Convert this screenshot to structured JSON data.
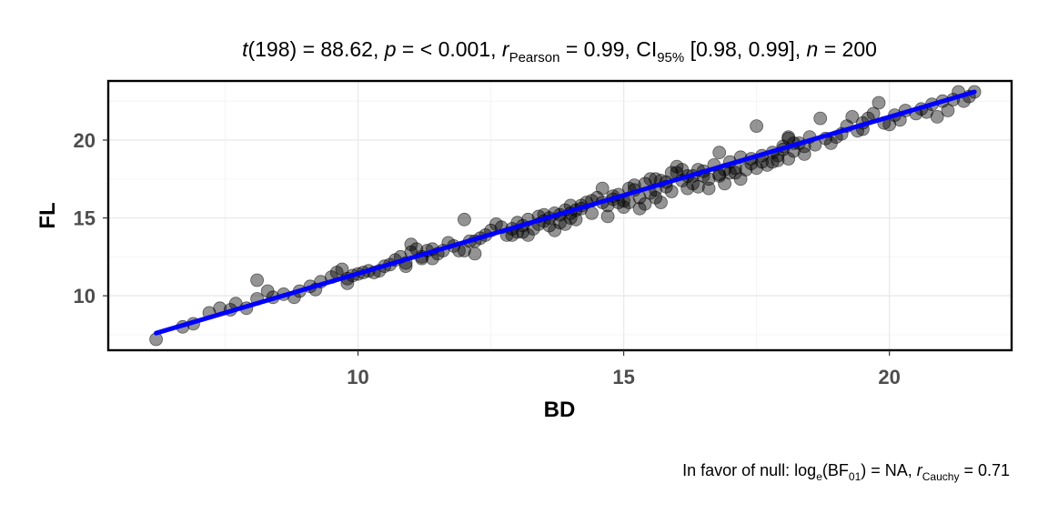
{
  "chart_data": {
    "type": "scatter",
    "title": {
      "t_sym": "t",
      "t_stat": "(198) = 88.62, ",
      "p_sym": "p",
      "p_text": " = < 0.001, ",
      "r_sym": "r",
      "r_sub": "Pearson",
      "r_text": " = 0.99, CI",
      "ci_sub": "95%",
      "ci_text": " [0.98, 0.99], ",
      "n_sym": "n",
      "n_text": " = 200"
    },
    "caption": {
      "prefix": "In favor of null: log",
      "log_sub": "e",
      "bf_open": "(BF",
      "bf_sub": "01",
      "bf_close": ") = NA, ",
      "r_sym": "r",
      "r_sub": "Cauchy",
      "r_text": " = 0.71"
    },
    "xlabel": "BD",
    "ylabel": "FL",
    "xlim": [
      5.3,
      22.3
    ],
    "ylim": [
      6.5,
      23.8
    ],
    "x_ticks": [
      10,
      15,
      20
    ],
    "y_ticks": [
      10,
      15,
      20
    ],
    "grid": true,
    "colors": {
      "points": "#000000",
      "fit_line": "#0000ff",
      "grid": "#ebebeb",
      "panel_border": "#000000"
    },
    "fit": {
      "x": [
        6.2,
        21.6
      ],
      "y": [
        7.6,
        23.1
      ]
    },
    "points": [
      [
        6.2,
        7.2
      ],
      [
        6.9,
        8.2
      ],
      [
        7.2,
        8.9
      ],
      [
        7.6,
        9.1
      ],
      [
        7.7,
        9.5
      ],
      [
        8.1,
        9.8
      ],
      [
        8.1,
        11.0
      ],
      [
        8.3,
        10.3
      ],
      [
        8.8,
        9.9
      ],
      [
        8.9,
        10.3
      ],
      [
        9.1,
        10.6
      ],
      [
        9.3,
        10.9
      ],
      [
        9.5,
        11.2
      ],
      [
        9.7,
        11.7
      ],
      [
        9.8,
        10.8
      ],
      [
        9.8,
        11.1
      ],
      [
        10.0,
        11.4
      ],
      [
        10.2,
        11.6
      ],
      [
        10.4,
        11.6
      ],
      [
        10.5,
        11.9
      ],
      [
        10.6,
        12.0
      ],
      [
        10.8,
        12.5
      ],
      [
        10.9,
        12.1
      ],
      [
        11.0,
        12.8
      ],
      [
        11.1,
        13.0
      ],
      [
        11.2,
        12.4
      ],
      [
        11.3,
        12.9
      ],
      [
        11.4,
        13.0
      ],
      [
        11.5,
        12.7
      ],
      [
        11.6,
        12.9
      ],
      [
        11.8,
        13.2
      ],
      [
        12.0,
        14.9
      ],
      [
        12.0,
        12.9
      ],
      [
        12.1,
        13.5
      ],
      [
        12.2,
        12.7
      ],
      [
        12.3,
        13.7
      ],
      [
        12.5,
        14.2
      ],
      [
        12.6,
        14.6
      ],
      [
        12.8,
        13.9
      ],
      [
        12.9,
        14.3
      ],
      [
        13.0,
        14.7
      ],
      [
        13.1,
        14.1
      ],
      [
        13.2,
        13.9
      ],
      [
        13.3,
        14.3
      ],
      [
        13.4,
        14.6
      ],
      [
        13.5,
        14.8
      ],
      [
        13.6,
        15.0
      ],
      [
        13.7,
        14.2
      ],
      [
        13.8,
        15.2
      ],
      [
        13.9,
        15.5
      ],
      [
        13.9,
        14.6
      ],
      [
        14.0,
        15.8
      ],
      [
        14.0,
        15.0
      ],
      [
        14.1,
        14.9
      ],
      [
        14.2,
        15.6
      ],
      [
        14.3,
        16.0
      ],
      [
        14.4,
        15.3
      ],
      [
        14.5,
        16.3
      ],
      [
        14.6,
        16.9
      ],
      [
        14.7,
        15.8
      ],
      [
        14.7,
        15.1
      ],
      [
        14.8,
        16.2
      ],
      [
        14.9,
        16.5
      ],
      [
        15.0,
        15.7
      ],
      [
        15.1,
        16.0
      ],
      [
        15.1,
        16.9
      ],
      [
        15.2,
        17.1
      ],
      [
        15.3,
        16.3
      ],
      [
        15.3,
        15.6
      ],
      [
        15.4,
        15.9
      ],
      [
        15.4,
        17.2
      ],
      [
        15.5,
        16.6
      ],
      [
        15.6,
        16.8
      ],
      [
        15.6,
        17.5
      ],
      [
        15.7,
        16.0
      ],
      [
        15.8,
        17.0
      ],
      [
        15.9,
        17.9
      ],
      [
        15.9,
        16.7
      ],
      [
        16.0,
        18.3
      ],
      [
        16.1,
        17.4
      ],
      [
        16.1,
        18.1
      ],
      [
        16.2,
        16.9
      ],
      [
        16.3,
        17.7
      ],
      [
        16.4,
        17.0
      ],
      [
        16.5,
        18.0
      ],
      [
        16.6,
        16.9
      ],
      [
        16.6,
        17.5
      ],
      [
        16.7,
        18.4
      ],
      [
        16.8,
        19.2
      ],
      [
        16.8,
        17.8
      ],
      [
        16.9,
        17.2
      ],
      [
        17.0,
        18.6
      ],
      [
        17.1,
        17.9
      ],
      [
        17.2,
        17.5
      ],
      [
        17.3,
        18.1
      ],
      [
        17.4,
        18.5
      ],
      [
        17.5,
        20.9
      ],
      [
        17.5,
        18.2
      ],
      [
        17.6,
        19.0
      ],
      [
        17.7,
        18.4
      ],
      [
        17.8,
        19.2
      ],
      [
        17.9,
        18.7
      ],
      [
        18.0,
        19.6
      ],
      [
        18.1,
        18.8
      ],
      [
        18.1,
        20.2
      ],
      [
        18.2,
        19.3
      ],
      [
        18.3,
        19.8
      ],
      [
        18.4,
        19.1
      ],
      [
        18.6,
        19.7
      ],
      [
        18.7,
        21.4
      ],
      [
        18.8,
        20.1
      ],
      [
        18.9,
        19.8
      ],
      [
        19.1,
        20.4
      ],
      [
        19.2,
        20.9
      ],
      [
        19.3,
        21.5
      ],
      [
        19.4,
        20.6
      ],
      [
        19.5,
        21.1
      ],
      [
        19.6,
        21.4
      ],
      [
        19.7,
        21.7
      ],
      [
        19.8,
        22.4
      ],
      [
        20.0,
        21.0
      ],
      [
        20.1,
        21.6
      ],
      [
        20.3,
        21.9
      ],
      [
        20.5,
        21.7
      ],
      [
        20.6,
        22.0
      ],
      [
        20.8,
        22.3
      ],
      [
        20.9,
        21.5
      ],
      [
        21.0,
        22.5
      ],
      [
        21.1,
        21.9
      ],
      [
        21.2,
        22.6
      ],
      [
        21.3,
        23.1
      ],
      [
        21.5,
        22.8
      ],
      [
        21.6,
        23.1
      ],
      [
        6.7,
        8.0
      ],
      [
        7.4,
        9.2
      ],
      [
        8.4,
        9.9
      ],
      [
        9.2,
        10.4
      ],
      [
        10.3,
        11.5
      ],
      [
        10.7,
        12.3
      ],
      [
        11.0,
        13.3
      ],
      [
        11.7,
        13.4
      ],
      [
        12.4,
        13.9
      ],
      [
        13.0,
        14.1
      ],
      [
        13.4,
        15.1
      ],
      [
        13.6,
        14.5
      ],
      [
        14.2,
        15.8
      ],
      [
        14.6,
        16.0
      ],
      [
        14.9,
        16.0
      ],
      [
        15.2,
        16.8
      ],
      [
        15.5,
        17.5
      ],
      [
        15.8,
        17.3
      ],
      [
        16.2,
        17.7
      ],
      [
        16.4,
        18.1
      ],
      [
        16.9,
        18.1
      ],
      [
        17.2,
        18.9
      ],
      [
        17.6,
        18.6
      ],
      [
        18.0,
        19.4
      ],
      [
        18.4,
        19.6
      ],
      [
        19.0,
        20.2
      ],
      [
        20.2,
        21.3
      ],
      [
        11.4,
        12.4
      ],
      [
        13.2,
        14.9
      ],
      [
        14.4,
        16.1
      ],
      [
        15.6,
        16.3
      ],
      [
        17.0,
        17.9
      ],
      [
        18.2,
        19.8
      ],
      [
        19.5,
        20.7
      ],
      [
        20.7,
        21.8
      ],
      [
        7.9,
        9.2
      ],
      [
        9.6,
        11.5
      ],
      [
        10.9,
        11.9
      ],
      [
        12.7,
        14.4
      ],
      [
        13.8,
        14.7
      ],
      [
        14.1,
        15.5
      ],
      [
        16.0,
        17.9
      ],
      [
        17.4,
        18.8
      ],
      [
        18.5,
        20.2
      ],
      [
        19.9,
        21.1
      ],
      [
        10.1,
        11.5
      ],
      [
        12.2,
        13.5
      ],
      [
        13.5,
        15.2
      ],
      [
        14.8,
        16.4
      ],
      [
        16.5,
        17.7
      ],
      [
        17.8,
        18.6
      ],
      [
        18.1,
        20.1
      ],
      [
        21.4,
        22.5
      ],
      [
        8.6,
        10.1
      ],
      [
        11.2,
        12.5
      ],
      [
        13.1,
        14.5
      ],
      [
        15.0,
        16.1
      ],
      [
        16.3,
        17.2
      ],
      [
        17.9,
        19.0
      ],
      [
        12.9,
        13.9
      ],
      [
        14.0,
        15.3
      ],
      [
        15.7,
        17.4
      ],
      [
        17.1,
        18.2
      ],
      [
        9.9,
        11.3
      ],
      [
        11.9,
        12.9
      ],
      [
        13.7,
        15.3
      ],
      [
        16.8,
        17.7
      ]
    ]
  }
}
